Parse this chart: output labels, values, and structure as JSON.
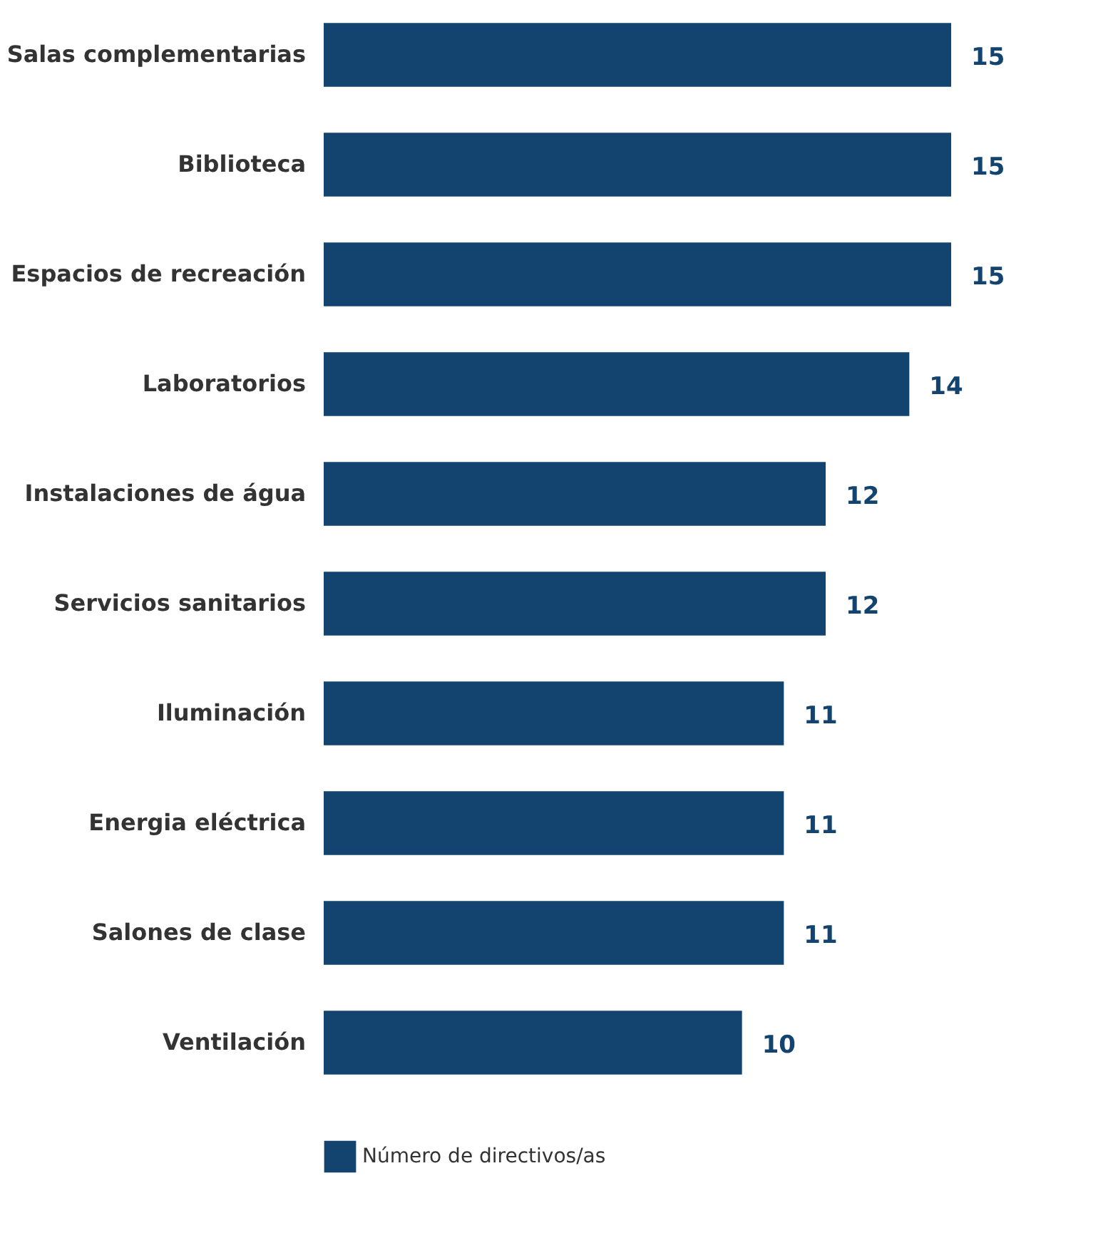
{
  "chart_data": {
    "type": "bar",
    "orientation": "horizontal",
    "categories": [
      "Salas complementarias",
      "Biblioteca",
      "Espacios de recreación",
      "Laboratorios",
      "Instalaciones de água",
      "Servicios sanitarios",
      "Iluminación",
      "Energia eléctrica",
      "Salones de clase",
      "Ventilación"
    ],
    "series": [
      {
        "name": "Número de directivos/as",
        "color": "#12446f",
        "values": [
          15,
          15,
          15,
          14,
          12,
          12,
          11,
          11,
          11,
          10
        ]
      }
    ],
    "xlim": [
      0,
      15
    ],
    "data_labels": true,
    "legend": "bottom",
    "tick_labels": "y"
  }
}
